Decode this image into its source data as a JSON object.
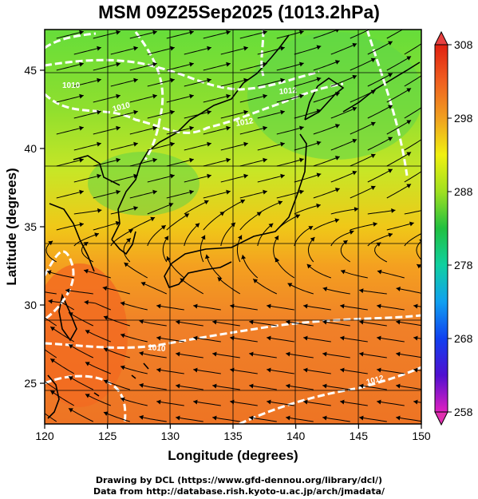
{
  "title": "MSM 09Z25Sep2025 (1013.2hPa)",
  "chart_data": {
    "type": "map",
    "xlabel": "Longitude (degrees)",
    "ylabel": "Latitude  (degrees)",
    "xlim": [
      120,
      150
    ],
    "ylim": [
      22.4,
      47.6
    ],
    "x_ticks": [
      "120",
      "125",
      "130",
      "135",
      "140",
      "145",
      "150"
    ],
    "y_ticks": [
      "25",
      "30",
      "35",
      "40",
      "45"
    ],
    "colorbar": {
      "range": [
        258,
        308
      ],
      "tick_labels": [
        "258",
        "268",
        "278",
        "288",
        "298",
        "308"
      ]
    },
    "isobar_labels": [
      "1010",
      "1012",
      "1012",
      "1010",
      "1012",
      "1010"
    ],
    "colors": {
      "isobar": "#ffffff",
      "coast": "#000000",
      "warm": "#f07020",
      "cool": "#50d040"
    }
  },
  "credits": [
    "Drawing by DCL (https://www.gfd-dennou.org/library/dcl/)",
    "Data from http://database.rish.kyoto-u.ac.jp/arch/jmadata/"
  ]
}
